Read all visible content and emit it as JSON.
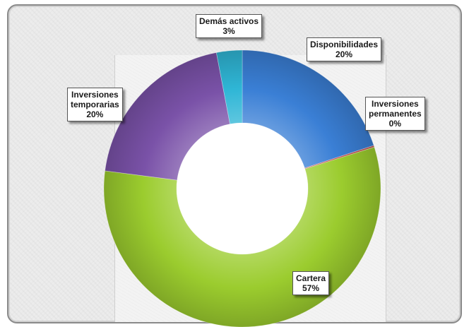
{
  "chart_data": {
    "type": "pie",
    "donut": true,
    "categories": [
      "Disponibilidades",
      "Inversiones\npermanentes",
      "Cartera",
      "Inversiones\ntemporarias",
      "Demás activos"
    ],
    "values": [
      20,
      0.2,
      57,
      20,
      3
    ],
    "value_labels": [
      "20%",
      "0%",
      "57%",
      "20%",
      "3%"
    ],
    "colors": [
      "#3a7fd5",
      "#c0504d",
      "#9bcc2e",
      "#7a52a8",
      "#2fb6d6"
    ],
    "legend": "none"
  }
}
